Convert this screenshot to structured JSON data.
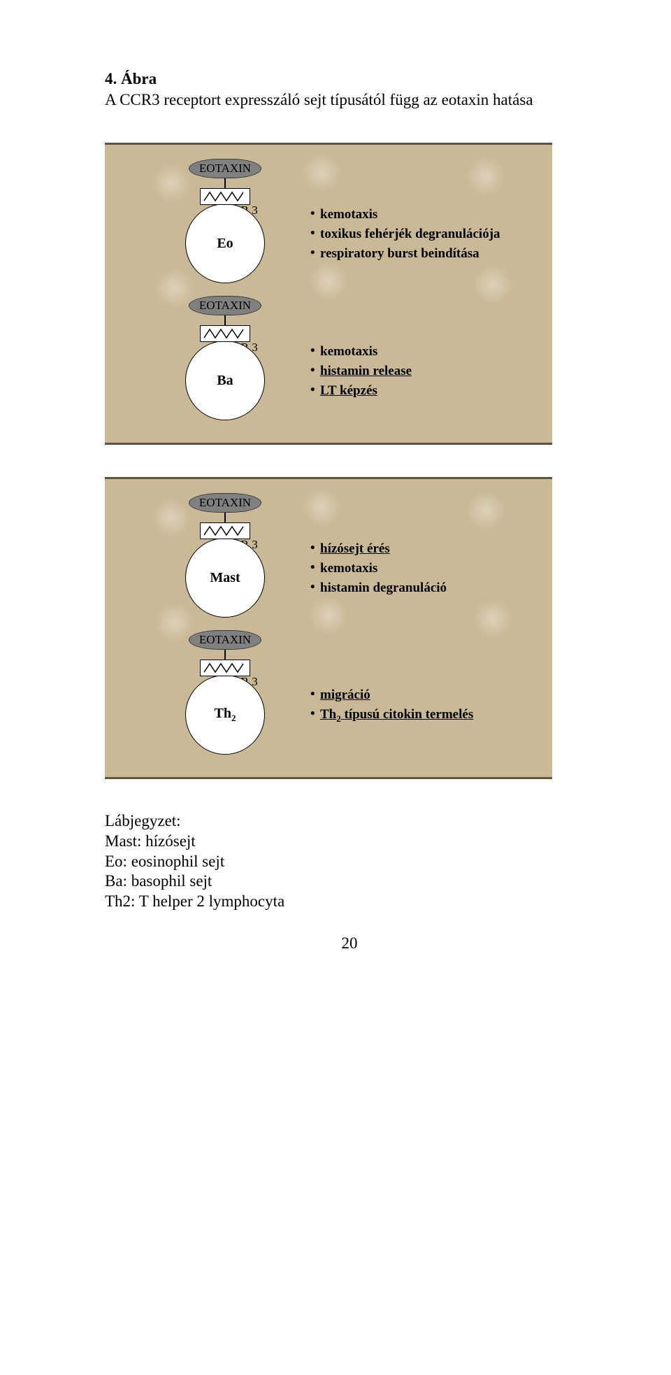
{
  "figure": {
    "title": "4. Ábra",
    "subtitle": "A CCR3 receptort expresszáló sejt típusától függ az eotaxin hatása"
  },
  "diagram": {
    "ligand_label": "EOTAXIN",
    "receptor_label": "CCR 3",
    "panel_bg": "#cab996",
    "panel_border": "#5f553e",
    "cell_fill": "#ffffff",
    "pill_fill": "#808080",
    "receptor_zigzag_color": "#000000"
  },
  "panels": [
    {
      "rows": [
        {
          "cell_label": "Eo",
          "effects": [
            {
              "text": "kemotaxis",
              "underline": false
            },
            {
              "text": "toxikus fehérjék degranulációja",
              "underline": false
            },
            {
              "text": "respiratory burst beindítása",
              "underline": false
            }
          ]
        },
        {
          "cell_label": "Ba",
          "effects": [
            {
              "text": "kemotaxis",
              "underline": false
            },
            {
              "text": "histamin release",
              "underline": true
            },
            {
              "text": "LT képzés",
              "underline": true
            }
          ]
        }
      ]
    },
    {
      "rows": [
        {
          "cell_label": "Mast",
          "effects": [
            {
              "text": "hízósejt érés",
              "underline": true
            },
            {
              "text": "kemotaxis",
              "underline": false
            },
            {
              "text": "histamin degranuláció",
              "underline": false
            }
          ]
        },
        {
          "cell_label_html": "Th<sub>2</sub>",
          "effects": [
            {
              "text": "migráció",
              "underline": true
            },
            {
              "text_html": "Th<sub>2</sub> típusú citokin termelés",
              "underline": true
            }
          ]
        }
      ]
    }
  ],
  "legend": {
    "heading": "Lábjegyzet:",
    "items": [
      "Mast: hízósejt",
      "Eo: eosinophil sejt",
      "Ba: basophil sejt",
      "Th2: T helper 2 lymphocyta"
    ]
  },
  "page_number": "20"
}
